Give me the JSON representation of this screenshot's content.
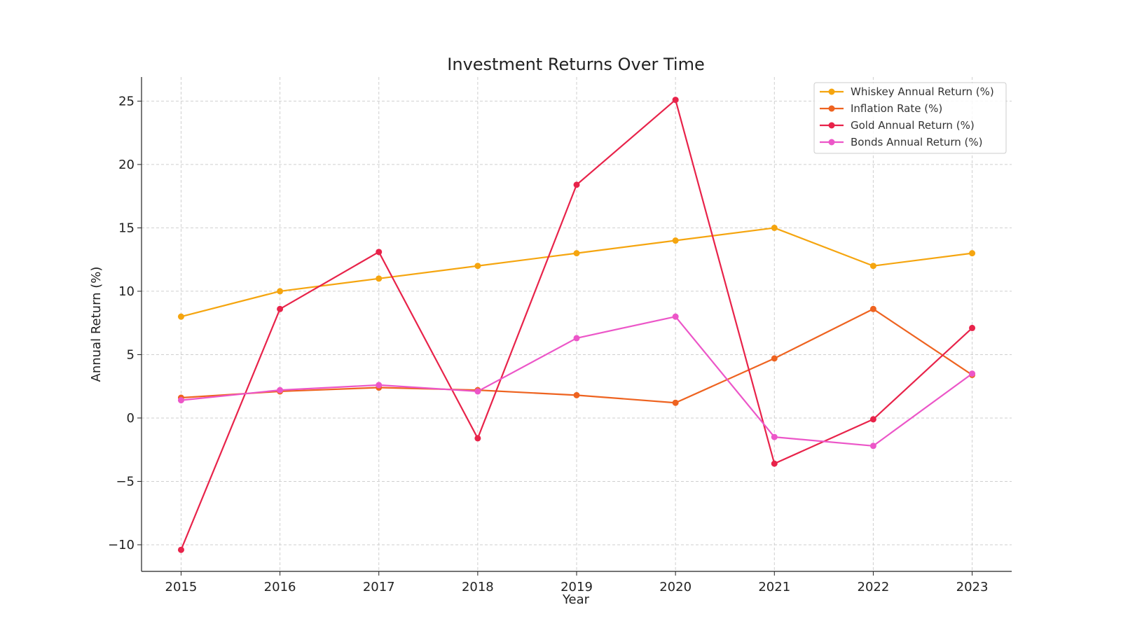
{
  "chart_data": {
    "type": "line",
    "title": "Investment Returns Over Time",
    "xlabel": "Year",
    "ylabel": "Annual Return (%)",
    "x": [
      "2015",
      "2016",
      "2017",
      "2018",
      "2019",
      "2020",
      "2021",
      "2022",
      "2023"
    ],
    "xlim": [
      2014.6,
      2023.4
    ],
    "ylim": [
      -12.1,
      26.9
    ],
    "yticks": [
      -10,
      -5,
      0,
      5,
      10,
      15,
      20,
      25
    ],
    "ytick_labels": [
      "−10",
      "−5",
      "0",
      "5",
      "10",
      "15",
      "20",
      "25"
    ],
    "grid": true,
    "legend_position": "top-right",
    "series": [
      {
        "name": "Whiskey Annual Return (%)",
        "color": "#F5A50F",
        "values": [
          8,
          10,
          11,
          12,
          13,
          14,
          15,
          12,
          13
        ]
      },
      {
        "name": "Inflation Rate (%)",
        "color": "#EE6320",
        "values": [
          1.6,
          2.1,
          2.4,
          2.2,
          1.8,
          1.2,
          4.7,
          8.6,
          3.4
        ]
      },
      {
        "name": "Gold Annual Return (%)",
        "color": "#E8234A",
        "values": [
          -10.4,
          8.6,
          13.1,
          -1.6,
          18.4,
          25.1,
          -3.6,
          -0.1,
          7.1
        ]
      },
      {
        "name": "Bonds Annual Return (%)",
        "color": "#EC56C8",
        "values": [
          1.4,
          2.2,
          2.6,
          2.1,
          6.3,
          8.0,
          -1.5,
          -2.2,
          3.5
        ]
      }
    ]
  }
}
